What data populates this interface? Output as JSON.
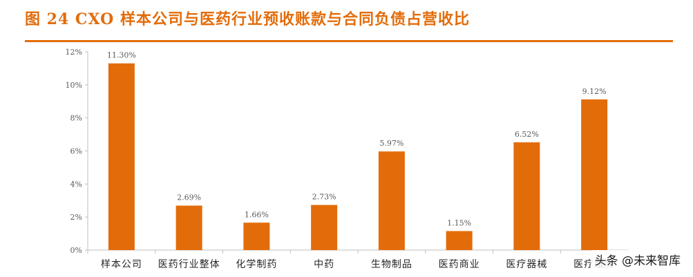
{
  "chart_data": {
    "type": "bar",
    "title": "图 24 CXO 样本公司与医药行业预收账款与合同负债占营收比",
    "categories": [
      "样本公司",
      "医药行业整体",
      "化学制药",
      "中药",
      "生物制品",
      "医药商业",
      "医疗器械",
      "医疗服务"
    ],
    "values": [
      11.3,
      2.69,
      1.66,
      2.73,
      5.97,
      1.15,
      6.52,
      9.12
    ],
    "value_labels": [
      "11.30%",
      "2.69%",
      "1.66%",
      "2.73%",
      "5.97%",
      "1.15%",
      "6.52%",
      "9.12%"
    ],
    "yticks": [
      "0%",
      "2%",
      "4%",
      "6%",
      "8%",
      "10%",
      "12%"
    ],
    "ylim": [
      0,
      12
    ],
    "xlabel": "",
    "ylabel": "",
    "grid": false,
    "bar_color": "#E36C0A"
  },
  "colors": {
    "accent": "#E36C0A",
    "axis": "#BFBFBF",
    "text": "#595959"
  },
  "watermark": "头条 @未来智库"
}
